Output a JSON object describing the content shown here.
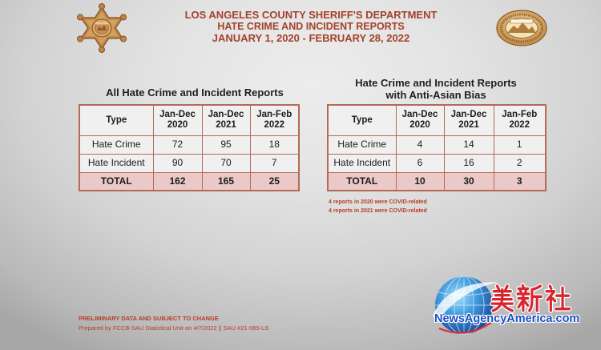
{
  "header": {
    "title": "LOS ANGELES COUNTY SHERIFF'S DEPARTMENT",
    "subtitle": "HATE CRIME AND INCIDENT REPORTS",
    "date_range": "JANUARY 1, 2020 - FEBRUARY 28, 2022"
  },
  "logos": {
    "left_icon": "sheriff-star-badge-icon",
    "right_icon": "department-seal-icon"
  },
  "tables": [
    {
      "heading": [
        "All Hate Crime and Incident Reports"
      ],
      "columns": [
        [
          "Type"
        ],
        [
          "Jan-Dec",
          "2020"
        ],
        [
          "Jan-Dec",
          "2021"
        ],
        [
          "Jan-Feb",
          "2022"
        ]
      ],
      "rows": [
        {
          "type": "Hate Crime",
          "values": [
            72,
            95,
            18
          ]
        },
        {
          "type": "Hate Incident",
          "values": [
            90,
            70,
            7
          ]
        }
      ],
      "total": {
        "label": "TOTAL",
        "values": [
          162,
          165,
          25
        ]
      }
    },
    {
      "heading": [
        "Hate Crime and Incident Reports",
        "with Anti-Asian Bias"
      ],
      "columns": [
        [
          "Type"
        ],
        [
          "Jan-Dec",
          "2020"
        ],
        [
          "Jan-Dec",
          "2021"
        ],
        [
          "Jan-Feb",
          "2022"
        ]
      ],
      "rows": [
        {
          "type": "Hate Crime",
          "values": [
            4,
            14,
            1
          ]
        },
        {
          "type": "Hate Incident",
          "values": [
            6,
            16,
            2
          ]
        }
      ],
      "total": {
        "label": "TOTAL",
        "values": [
          10,
          30,
          3
        ]
      }
    }
  ],
  "notes": [
    "4 reports in 2020 were COVID-related",
    "4 reports in 2021 were COVID-related"
  ],
  "footer": {
    "disclaimer": "PRELIMINARY DATA AND SUBJECT TO CHANGE",
    "prepared_by": "Prepared by FCCB-SAU Statistical Unit on 4/7/2022 || SAU #21-085-LS"
  },
  "watermark": {
    "mark_text": "美新社",
    "site": "NewsAgencyAmerica.com",
    "icon": "globe-icon"
  },
  "colors": {
    "title": "#a3412b",
    "table_border": "#b36a57",
    "total_row": "#ebc9c8",
    "note": "#b73d25",
    "watermark_blue": "#1b4fc2",
    "watermark_red": "#d8262e"
  }
}
